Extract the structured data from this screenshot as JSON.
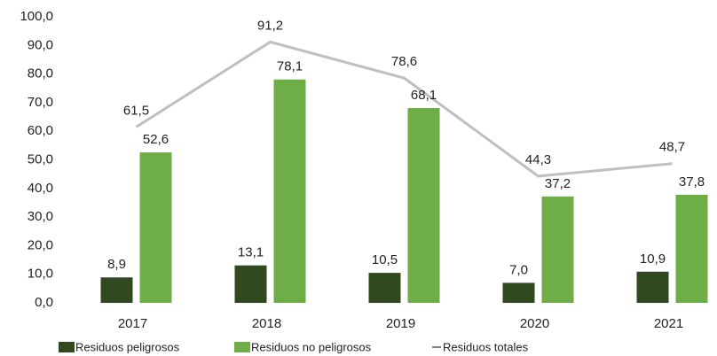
{
  "chart_data": {
    "type": "bar",
    "categories": [
      "2017",
      "2018",
      "2019",
      "2020",
      "2021"
    ],
    "series": [
      {
        "name": "Residuos peligrosos",
        "color": "#30491f",
        "values": [
          8.9,
          13.1,
          10.5,
          7.0,
          10.9
        ],
        "value_labels": [
          "8,9",
          "13,1",
          "10,5",
          "7,0",
          "10,9"
        ]
      },
      {
        "name": "Residuos no peligrosos",
        "color": "#6fae47",
        "values": [
          52.6,
          78.1,
          68.1,
          37.2,
          37.8
        ],
        "value_labels": [
          "52,6",
          "78,1",
          "68,1",
          "37,2",
          "37,8"
        ]
      },
      {
        "name": "Residuos totales",
        "color": "#bfbfbf",
        "type": "line",
        "values": [
          61.5,
          91.2,
          78.6,
          44.3,
          48.7
        ],
        "value_labels": [
          "61,5",
          "91,2",
          "78,6",
          "44,3",
          "48,7"
        ]
      }
    ],
    "ylim": [
      0,
      100
    ],
    "yticks": [
      {
        "value": 0,
        "label": "0,0"
      },
      {
        "value": 10,
        "label": "10,0"
      },
      {
        "value": 20,
        "label": "20,0"
      },
      {
        "value": 30,
        "label": "30,0"
      },
      {
        "value": 40,
        "label": "40,0"
      },
      {
        "value": 50,
        "label": "50,0"
      },
      {
        "value": 60,
        "label": "60,0"
      },
      {
        "value": 70,
        "label": "70,0"
      },
      {
        "value": 80,
        "label": "80,0"
      },
      {
        "value": 90,
        "label": "90,0"
      },
      {
        "value": 100,
        "label": "100,0"
      }
    ],
    "legend": "bottom"
  }
}
